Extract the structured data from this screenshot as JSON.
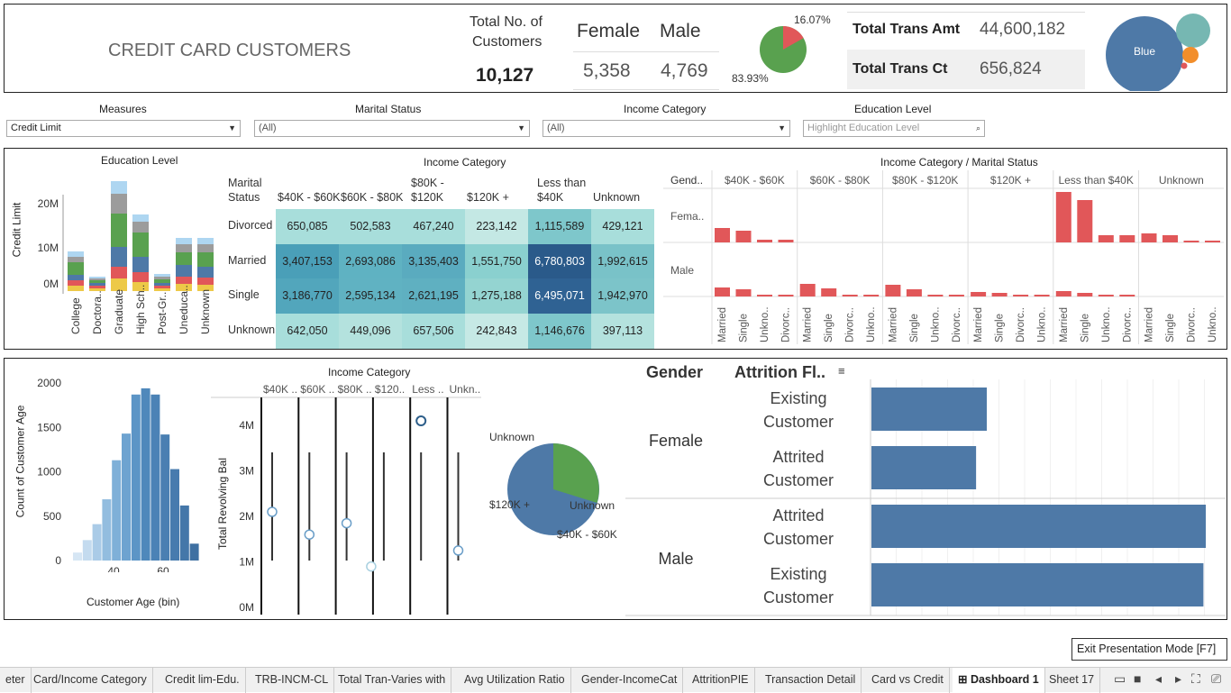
{
  "header": {
    "title": "CREDIT CARD CUSTOMERS",
    "total_customers_label_1": "Total No. of",
    "total_customers_label_2": "Customers",
    "total_customers": "10,127",
    "female_label": "Female",
    "male_label": "Male",
    "female_count": "5,358",
    "male_count": "4,769",
    "pie_small_pct": "16.07%",
    "pie_large_pct": "83.93%",
    "trans_amt_label": "Total Trans Amt",
    "trans_amt": "44,600,182",
    "trans_ct_label": "Total Trans Ct",
    "trans_ct": "656,824",
    "bubble_label": "Blue"
  },
  "filters": {
    "measures_label": "Measures",
    "measures_value": "Credit Limit",
    "marital_label": "Marital Status",
    "marital_value": "(All)",
    "income_label": "Income Category",
    "income_value": "(All)",
    "education_label": "Education Level",
    "education_placeholder": "Highlight Education Level"
  },
  "edu_chart": {
    "title": "Education Level",
    "ylabel": "Credit Limit",
    "yticks": [
      "20M",
      "10M",
      "0M"
    ],
    "categories": [
      "College",
      "Doctora..",
      "Graduate",
      "High Sch..",
      "Post-Gr..",
      "Uneduca..",
      "Unknown"
    ]
  },
  "heatmap": {
    "title": "Income Category",
    "row_header_1": "Marital",
    "row_header_2": "Status",
    "columns": [
      "$40K - $60K",
      "$60K - $80K",
      "$80K -\n$120K",
      "$120K +",
      "Less than\n$40K",
      "Unknown"
    ],
    "rows": [
      {
        "label": "Divorced",
        "values": [
          "650,085",
          "502,583",
          "467,240",
          "223,142",
          "1,115,589",
          "429,121"
        ]
      },
      {
        "label": "Married",
        "values": [
          "3,407,153",
          "2,693,086",
          "3,135,403",
          "1,551,750",
          "6,780,803",
          "1,992,615"
        ]
      },
      {
        "label": "Single",
        "values": [
          "3,186,770",
          "2,595,134",
          "2,621,195",
          "1,275,188",
          "6,495,071",
          "1,942,970"
        ]
      },
      {
        "label": "Unknown",
        "values": [
          "642,050",
          "449,096",
          "657,506",
          "242,843",
          "1,146,676",
          "397,113"
        ]
      }
    ]
  },
  "small_multiples": {
    "title": "Income Category / Marital Status",
    "gender_header": "Gend..",
    "columns": [
      "$40K - $60K",
      "$60K - $80K",
      "$80K - $120K",
      "$120K +",
      "Less than $40K",
      "Unknown"
    ],
    "rows": [
      "Fema..",
      "Male"
    ],
    "xlabels": [
      [
        "Married",
        "Single",
        "Unkno..",
        "Divorc.."
      ],
      [
        "Married",
        "Single",
        "Divorc..",
        "Unkno.."
      ],
      [
        "Married",
        "Single",
        "Unkno..",
        "Divorc.."
      ],
      [
        "Married",
        "Single",
        "Divorc..",
        "Unkno.."
      ],
      [
        "Married",
        "Single",
        "Unkno..",
        "Divorc.."
      ],
      [
        "Married",
        "Single",
        "Divorc..",
        "Unkno.."
      ]
    ]
  },
  "histogram": {
    "xlabel": "Customer Age (bin)",
    "ylabel": "Count of Customer Age",
    "yticks": [
      "2000",
      "1500",
      "1000",
      "500",
      "0"
    ],
    "xticks": [
      "40",
      "60"
    ],
    "values": [
      90,
      230,
      410,
      690,
      1130,
      1430,
      1870,
      1940,
      1870,
      1420,
      1030,
      620,
      190
    ]
  },
  "dotplot": {
    "title": "Income Category",
    "ylabel": "Total Revolving Bal",
    "yticks": [
      "4M",
      "3M",
      "2M",
      "1M",
      "0M"
    ],
    "columns": [
      "$40K ..",
      "$60K ..",
      "$80K ..",
      "$120..",
      "Less ..",
      "Unkn.."
    ],
    "points": [
      2.1,
      1.6,
      1.85,
      0.9,
      4.1,
      1.25
    ]
  },
  "pie2": {
    "label_unknown_top": "Unknown",
    "label_120k": "$120K +",
    "label_unknown_right": "Unknown",
    "label_40k": "$40K - $60K"
  },
  "attrition": {
    "gender_header": "Gender",
    "flag_header": "Attrition Fl..",
    "groups": [
      {
        "gender": "Female",
        "rows": [
          {
            "label1": "Existing",
            "label2": "Customer",
            "value": 0.345
          },
          {
            "label1": "Attrited",
            "label2": "Customer",
            "value": 0.313
          }
        ]
      },
      {
        "gender": "Male",
        "rows": [
          {
            "label1": "Attrited",
            "label2": "Customer",
            "value": 1.0
          },
          {
            "label1": "Existing",
            "label2": "Customer",
            "value": 0.993
          }
        ]
      }
    ]
  },
  "tooltip": "Exit Presentation Mode [F7]",
  "tabs": [
    "eter",
    "Card/Income Category",
    "Credit lim-Edu.",
    "TRB-INCM-CL",
    "Total Tran-Varies with",
    "Avg Utilization Ratio",
    "Gender-IncomeCat",
    "AttritionPIE",
    "Transaction Detail",
    "Card vs Credit",
    "Dashboard 1",
    "Sheet 17"
  ],
  "colors": {
    "accent_blue": "#4e79a7",
    "pie_red": "#e15759",
    "pie_green": "#59a14f",
    "bar_red": "#e15759"
  }
}
